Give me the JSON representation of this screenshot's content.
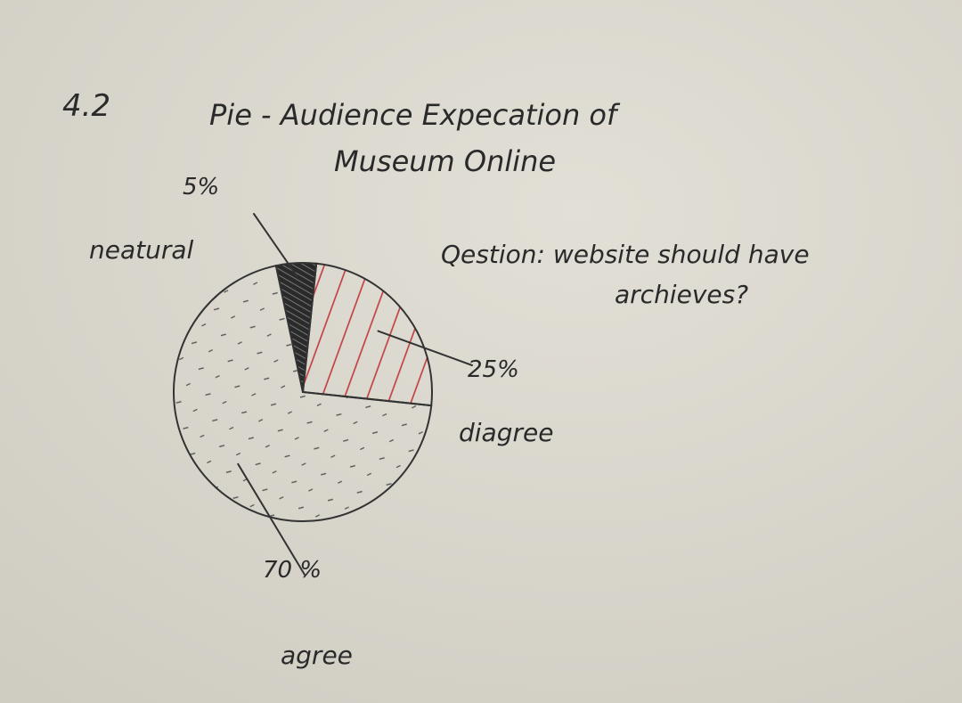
{
  "figure_number": "4.2",
  "chart_data": {
    "type": "pie",
    "title": "Pie - Audience Expecation of Museum Online",
    "question": "Qestion: website should have archieves?",
    "categories": [
      "neatural",
      "diagree",
      "agree"
    ],
    "values": [
      5,
      25,
      70
    ],
    "value_labels": [
      "5%",
      "25%",
      "70 %"
    ],
    "colors": [
      "#1e1e1e",
      "#c0393b",
      "#6a6a6a"
    ]
  }
}
